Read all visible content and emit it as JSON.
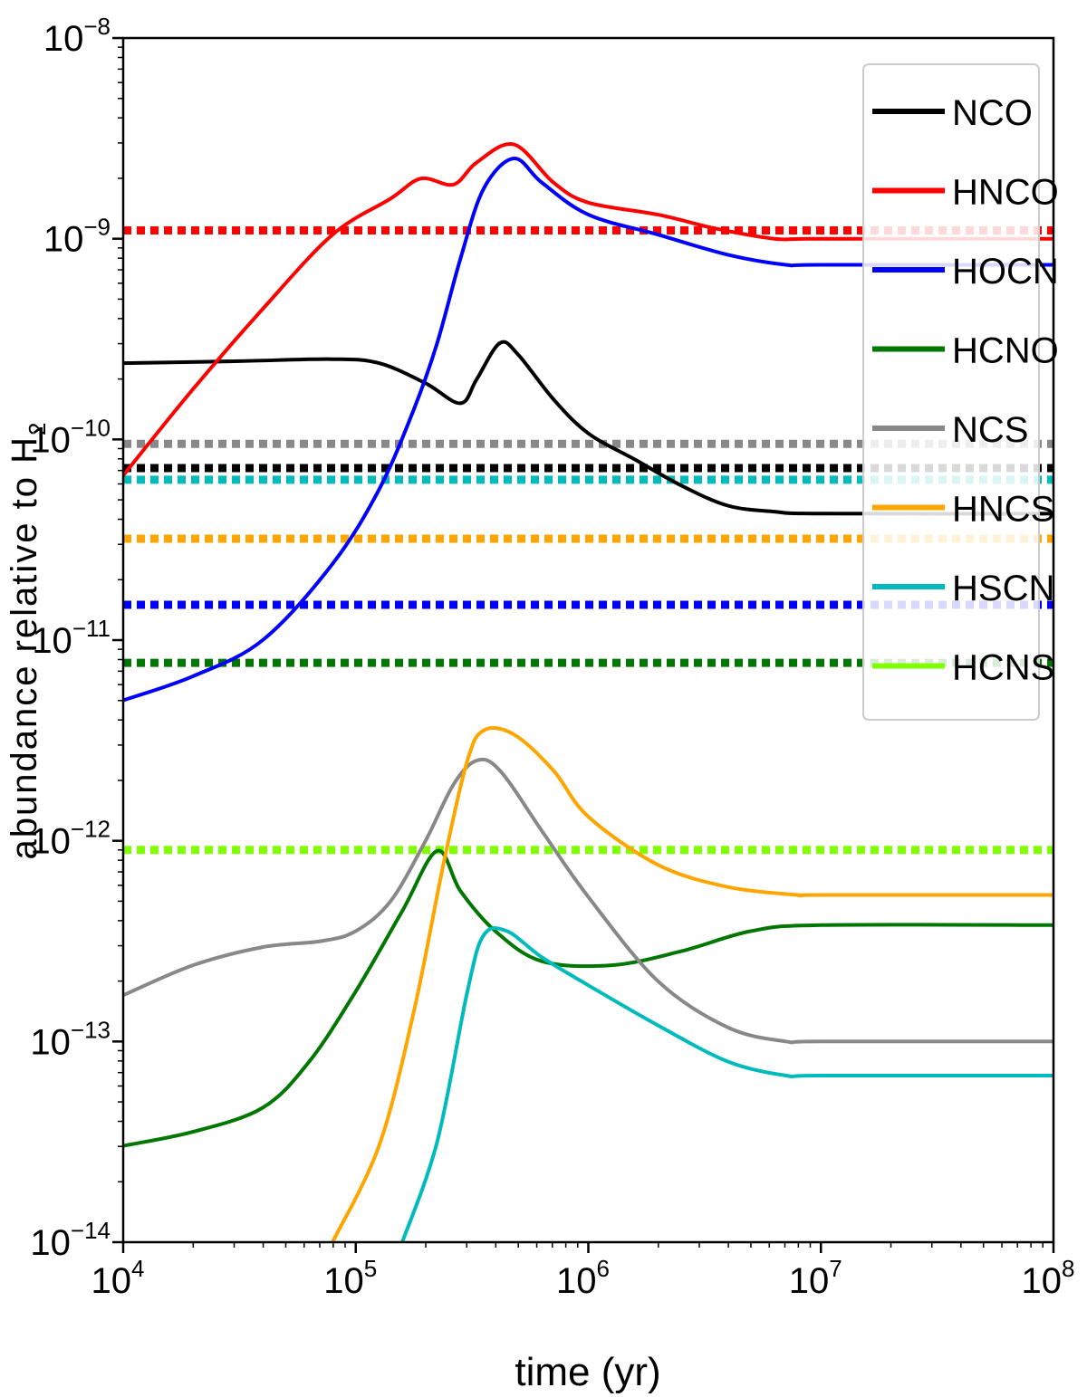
{
  "chart_data": {
    "type": "line",
    "title": "",
    "xlabel": "time (yr)",
    "ylabel": "abundance relative to H",
    "ylabel_subscript": "2",
    "xscale": "log",
    "yscale": "log",
    "xlim": [
      10000,
      100000000
    ],
    "ylim": [
      1e-14,
      1e-08
    ],
    "x_ticks": [
      {
        "value": 10000,
        "base": "10",
        "exp": "4"
      },
      {
        "value": 100000,
        "base": "10",
        "exp": "5"
      },
      {
        "value": 1000000,
        "base": "10",
        "exp": "6"
      },
      {
        "value": 10000000,
        "base": "10",
        "exp": "7"
      },
      {
        "value": 100000000,
        "base": "10",
        "exp": "8"
      }
    ],
    "y_ticks": [
      {
        "value": 1e-08,
        "base": "10",
        "exp": "−8"
      },
      {
        "value": 1e-09,
        "base": "10",
        "exp": "−9"
      },
      {
        "value": 1e-10,
        "base": "10",
        "exp": "−10"
      },
      {
        "value": 1e-11,
        "base": "10",
        "exp": "−11"
      },
      {
        "value": 1e-12,
        "base": "10",
        "exp": "−12"
      },
      {
        "value": 1e-13,
        "base": "10",
        "exp": "−13"
      },
      {
        "value": 1e-14,
        "base": "10",
        "exp": "−14"
      }
    ],
    "legend_position": "top-right",
    "series": [
      {
        "name": "NCO",
        "color": "#000000",
        "points": [
          [
            4,
            -9.62
          ],
          [
            4.5,
            -9.61
          ],
          [
            4.9,
            -9.6
          ],
          [
            5.1,
            -9.62
          ],
          [
            5.3,
            -9.72
          ],
          [
            5.45,
            -9.82
          ],
          [
            5.52,
            -9.7
          ],
          [
            5.62,
            -9.52
          ],
          [
            5.7,
            -9.58
          ],
          [
            5.85,
            -9.8
          ],
          [
            6,
            -9.97
          ],
          [
            6.2,
            -10.1
          ],
          [
            6.4,
            -10.23
          ],
          [
            6.6,
            -10.33
          ],
          [
            6.8,
            -10.36
          ],
          [
            7,
            -10.37
          ],
          [
            8,
            -10.37
          ]
        ],
        "observed": 7.2e-11
      },
      {
        "name": "HNCO",
        "color": "#ff0000",
        "points": [
          [
            4,
            -10.18
          ],
          [
            4.3,
            -9.75
          ],
          [
            4.6,
            -9.35
          ],
          [
            4.9,
            -8.98
          ],
          [
            5.15,
            -8.8
          ],
          [
            5.28,
            -8.7
          ],
          [
            5.42,
            -8.73
          ],
          [
            5.52,
            -8.62
          ],
          [
            5.68,
            -8.53
          ],
          [
            5.85,
            -8.72
          ],
          [
            6,
            -8.82
          ],
          [
            6.3,
            -8.88
          ],
          [
            6.55,
            -8.95
          ],
          [
            6.8,
            -9.0
          ],
          [
            7,
            -9.0
          ],
          [
            8,
            -9.0
          ]
        ],
        "observed": 1.1e-09
      },
      {
        "name": "HOCN",
        "color": "#0000ff",
        "points": [
          [
            4,
            -11.3
          ],
          [
            4.3,
            -11.18
          ],
          [
            4.6,
            -11.0
          ],
          [
            4.9,
            -10.62
          ],
          [
            5.1,
            -10.25
          ],
          [
            5.25,
            -9.85
          ],
          [
            5.35,
            -9.52
          ],
          [
            5.45,
            -9.1
          ],
          [
            5.55,
            -8.75
          ],
          [
            5.68,
            -8.6
          ],
          [
            5.8,
            -8.72
          ],
          [
            6,
            -8.88
          ],
          [
            6.3,
            -8.98
          ],
          [
            6.6,
            -9.08
          ],
          [
            6.85,
            -9.13
          ],
          [
            7,
            -9.13
          ],
          [
            8,
            -9.13
          ]
        ],
        "observed": 1.5e-11
      },
      {
        "name": "HCNO",
        "color": "#007700",
        "points": [
          [
            4,
            -13.52
          ],
          [
            4.3,
            -13.45
          ],
          [
            4.6,
            -13.33
          ],
          [
            4.8,
            -13.1
          ],
          [
            5.0,
            -12.75
          ],
          [
            5.2,
            -12.35
          ],
          [
            5.35,
            -12.05
          ],
          [
            5.45,
            -12.25
          ],
          [
            5.6,
            -12.45
          ],
          [
            5.8,
            -12.6
          ],
          [
            6.1,
            -12.62
          ],
          [
            6.4,
            -12.55
          ],
          [
            6.7,
            -12.45
          ],
          [
            7,
            -12.42
          ],
          [
            8,
            -12.42
          ]
        ],
        "observed": 7.7e-12
      },
      {
        "name": "NCS",
        "color": "#888888",
        "points": [
          [
            4,
            -12.77
          ],
          [
            4.3,
            -12.62
          ],
          [
            4.6,
            -12.53
          ],
          [
            4.85,
            -12.5
          ],
          [
            5.0,
            -12.45
          ],
          [
            5.15,
            -12.3
          ],
          [
            5.3,
            -12.0
          ],
          [
            5.42,
            -11.72
          ],
          [
            5.52,
            -11.6
          ],
          [
            5.62,
            -11.65
          ],
          [
            5.8,
            -11.95
          ],
          [
            6,
            -12.28
          ],
          [
            6.3,
            -12.7
          ],
          [
            6.6,
            -12.93
          ],
          [
            6.85,
            -13.0
          ],
          [
            7,
            -13.0
          ],
          [
            8,
            -13.0
          ]
        ],
        "observed": 9.5e-11
      },
      {
        "name": "HNCS",
        "color": "#ffa500",
        "points": [
          [
            4.9,
            -14.0
          ],
          [
            5.1,
            -13.52
          ],
          [
            5.25,
            -12.85
          ],
          [
            5.38,
            -12.1
          ],
          [
            5.48,
            -11.6
          ],
          [
            5.55,
            -11.45
          ],
          [
            5.68,
            -11.47
          ],
          [
            5.85,
            -11.65
          ],
          [
            6,
            -11.88
          ],
          [
            6.3,
            -12.12
          ],
          [
            6.6,
            -12.23
          ],
          [
            6.9,
            -12.27
          ],
          [
            7,
            -12.27
          ],
          [
            8,
            -12.27
          ]
        ],
        "observed": 3.2e-11
      },
      {
        "name": "HSCN",
        "color": "#00bbbb",
        "points": [
          [
            5.2,
            -14.0
          ],
          [
            5.35,
            -13.5
          ],
          [
            5.48,
            -12.75
          ],
          [
            5.55,
            -12.47
          ],
          [
            5.65,
            -12.45
          ],
          [
            5.8,
            -12.58
          ],
          [
            6,
            -12.72
          ],
          [
            6.3,
            -12.92
          ],
          [
            6.6,
            -13.1
          ],
          [
            6.85,
            -13.17
          ],
          [
            7,
            -13.17
          ],
          [
            8,
            -13.17
          ]
        ],
        "observed": 6.3e-11
      },
      {
        "name": "HCNS",
        "color": "#7fff00",
        "points": [],
        "observed": 9e-13
      }
    ]
  }
}
